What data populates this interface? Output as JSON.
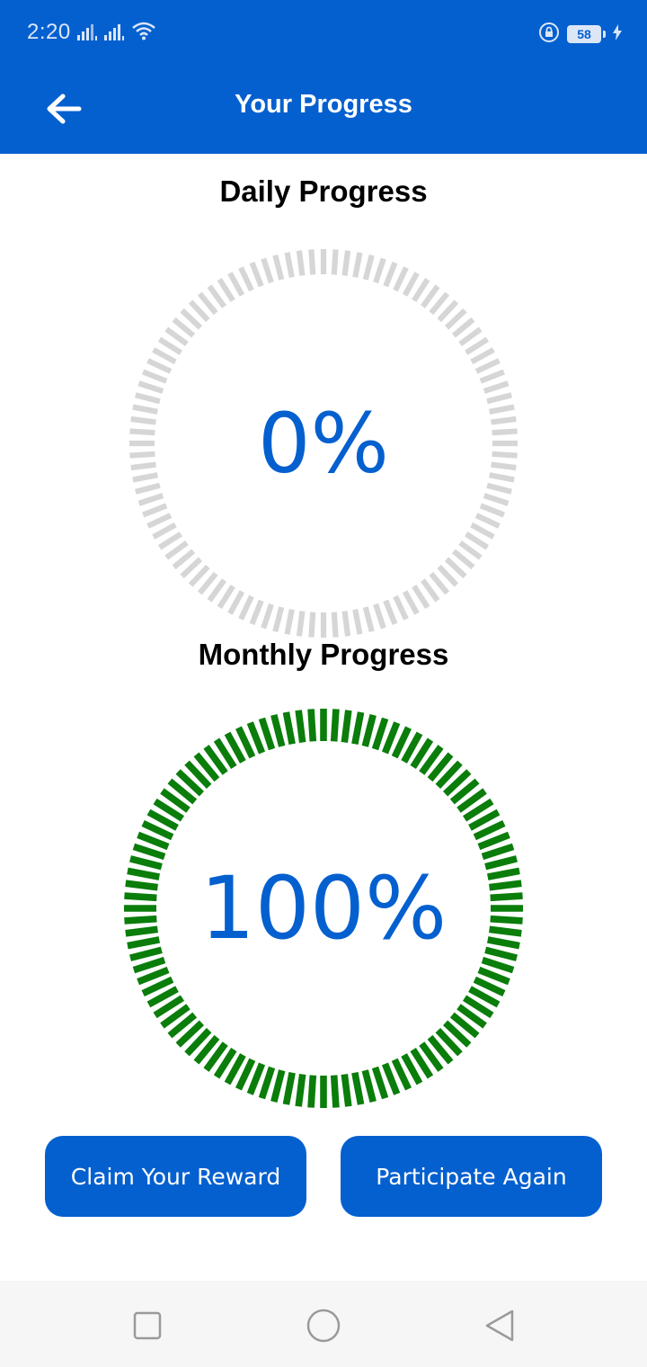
{
  "status_bar": {
    "time": "2:20",
    "battery_level": "58",
    "icons": [
      "signal-icon",
      "signal-icon",
      "wifi-icon",
      "lock-rotation-icon",
      "battery-icon",
      "charging-bolt-icon"
    ]
  },
  "app_bar": {
    "title": "Your Progress",
    "back_icon": "arrow-left-icon"
  },
  "daily": {
    "title": "Daily Progress",
    "value_label": "0%",
    "progress": 0
  },
  "monthly": {
    "title": "Monthly Progress",
    "value_label": "100%",
    "progress": 1
  },
  "buttons": {
    "claim_label": "Claim Your Reward",
    "participate_label": "Participate Again"
  },
  "nav": {
    "icons": [
      "recents-square-icon",
      "home-circle-icon",
      "back-triangle-icon"
    ]
  },
  "colors": {
    "primary": "#0560cf",
    "track": "#d6d6d6",
    "complete": "#0a7d0a",
    "nav_background": "#f6f6f6"
  }
}
